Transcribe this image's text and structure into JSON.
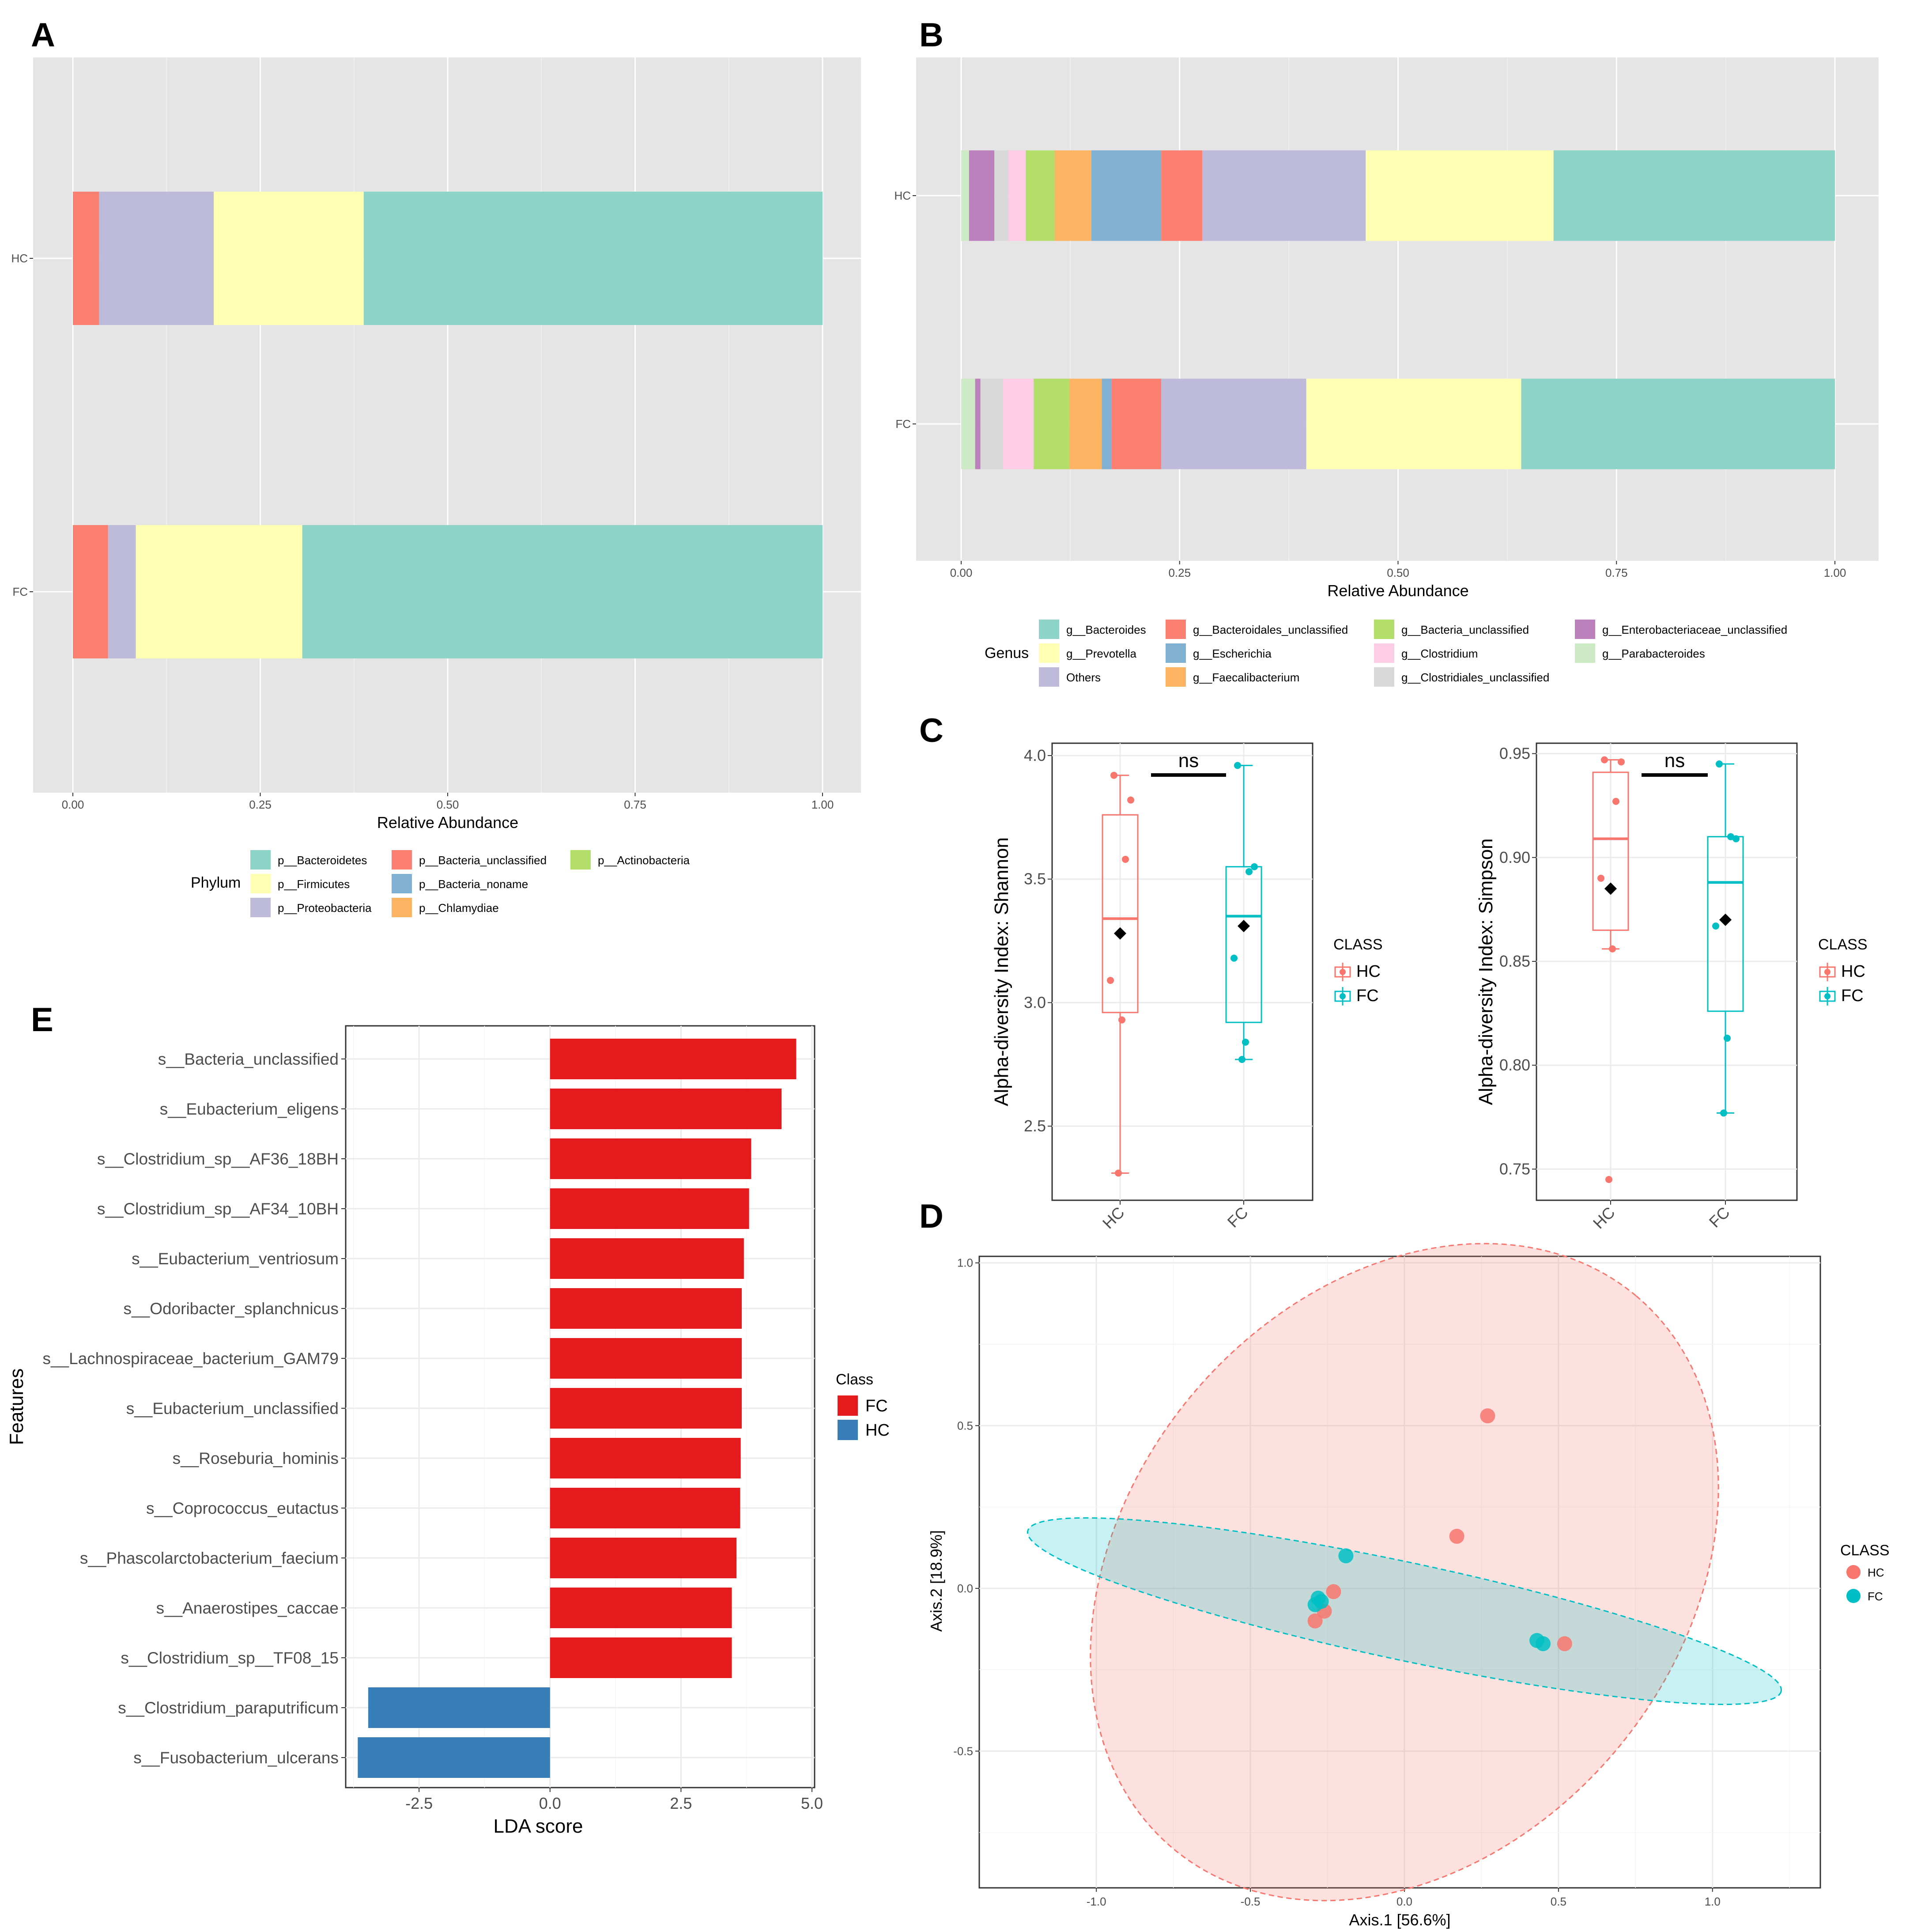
{
  "panels": {
    "A": "A",
    "B": "B",
    "C": "C",
    "D": "D",
    "E": "E"
  },
  "chart_data": [
    {
      "id": "A",
      "type": "bar",
      "orientation": "horizontal",
      "stacked": true,
      "xlabel": "Relative Abundance",
      "xlim": [
        0,
        1
      ],
      "xticks": [
        "0.00",
        "0.25",
        "0.50",
        "0.75",
        "1.00"
      ],
      "categories": [
        "HC",
        "FC"
      ],
      "legend_title": "Phylum",
      "series": [
        {
          "name": "p__Chlamydiae",
          "color": "#fdb462",
          "values": [
            0.0,
            0.0
          ]
        },
        {
          "name": "p__Bacteria_noname",
          "color": "#80b1d3",
          "values": [
            0.0,
            0.0
          ]
        },
        {
          "name": "p__Actinobacteria",
          "color": "#b3de69",
          "values": [
            0.0,
            0.0
          ]
        },
        {
          "name": "p__Bacteria_unclassified",
          "color": "#fb8072",
          "values": [
            0.035,
            0.047
          ]
        },
        {
          "name": "p__Proteobacteria",
          "color": "#bebada",
          "values": [
            0.153,
            0.037
          ]
        },
        {
          "name": "p__Firmicutes",
          "color": "#ffffb3",
          "values": [
            0.2,
            0.222
          ]
        },
        {
          "name": "p__Bacteroidetes",
          "color": "#8dd3c7",
          "values": [
            0.612,
            0.694
          ]
        }
      ],
      "legend": [
        {
          "name": "p__Bacteroidetes",
          "color": "#8dd3c7"
        },
        {
          "name": "p__Firmicutes",
          "color": "#ffffb3"
        },
        {
          "name": "p__Proteobacteria",
          "color": "#bebada"
        },
        {
          "name": "p__Bacteria_unclassified",
          "color": "#fb8072"
        },
        {
          "name": "p__Bacteria_noname",
          "color": "#80b1d3"
        },
        {
          "name": "p__Chlamydiae",
          "color": "#fdb462"
        },
        {
          "name": "p__Actinobacteria",
          "color": "#b3de69"
        }
      ]
    },
    {
      "id": "B",
      "type": "bar",
      "orientation": "horizontal",
      "stacked": true,
      "xlabel": "Relative Abundance",
      "xlim": [
        0,
        1
      ],
      "xticks": [
        "0.00",
        "0.25",
        "0.50",
        "0.75",
        "1.00"
      ],
      "categories": [
        "HC",
        "FC"
      ],
      "legend_title": "Genus",
      "series": [
        {
          "name": "g__Parabacteroides",
          "color": "#ccebc5",
          "values": [
            0.009,
            0.016
          ]
        },
        {
          "name": "g__Enterobacteriaceae_unclassified",
          "color": "#bc80bd",
          "values": [
            0.029,
            0.006
          ]
        },
        {
          "name": "g__Clostridiales_unclassified",
          "color": "#d9d9d9",
          "values": [
            0.016,
            0.026
          ]
        },
        {
          "name": "g__Clostridium",
          "color": "#fccde5",
          "values": [
            0.02,
            0.035
          ]
        },
        {
          "name": "g__Bacteria_unclassified",
          "color": "#b3de69",
          "values": [
            0.033,
            0.041
          ]
        },
        {
          "name": "g__Faecalibacterium",
          "color": "#fdb462",
          "values": [
            0.042,
            0.037
          ]
        },
        {
          "name": "g__Escherichia",
          "color": "#80b1d3",
          "values": [
            0.08,
            0.011
          ]
        },
        {
          "name": "g__Bacteroidales_unclassified",
          "color": "#fb8072",
          "values": [
            0.047,
            0.057
          ]
        },
        {
          "name": "Others",
          "color": "#bebada",
          "values": [
            0.187,
            0.166
          ]
        },
        {
          "name": "g__Prevotella",
          "color": "#ffffb3",
          "values": [
            0.215,
            0.246
          ]
        },
        {
          "name": "g__Bacteroides",
          "color": "#8dd3c7",
          "values": [
            0.322,
            0.359
          ]
        }
      ],
      "legend": [
        {
          "name": "g__Bacteroides",
          "color": "#8dd3c7"
        },
        {
          "name": "g__Prevotella",
          "color": "#ffffb3"
        },
        {
          "name": "Others",
          "color": "#bebada"
        },
        {
          "name": "g__Bacteroidales_unclassified",
          "color": "#fb8072"
        },
        {
          "name": "g__Escherichia",
          "color": "#80b1d3"
        },
        {
          "name": "g__Faecalibacterium",
          "color": "#fdb462"
        },
        {
          "name": "g__Bacteria_unclassified",
          "color": "#b3de69"
        },
        {
          "name": "g__Clostridium",
          "color": "#fccde5"
        },
        {
          "name": "g__Clostridiales_unclassified",
          "color": "#d9d9d9"
        },
        {
          "name": "g__Enterobacteriaceae_unclassified",
          "color": "#bc80bd"
        },
        {
          "name": "g__Parabacteroides",
          "color": "#ccebc5"
        }
      ]
    },
    {
      "id": "C1",
      "type": "boxplot",
      "ylabel": "Alpha-diversity Index: Shannon",
      "ylim": [
        2.2,
        4.05
      ],
      "yticks": [
        2.5,
        3.0,
        3.5,
        4.0
      ],
      "ytick_labels": [
        "2.5",
        "3.0",
        "3.5",
        "4.0"
      ],
      "categories": [
        "HC",
        "FC"
      ],
      "annotation": "ns",
      "legend_title": "CLASS",
      "groups": [
        {
          "name": "HC",
          "color": "#f8766d",
          "min": 2.31,
          "q1": 2.96,
          "median": 3.34,
          "q3": 3.76,
          "max": 3.92,
          "mean": 3.28,
          "points": [
            3.92,
            3.82,
            3.58,
            3.09,
            2.93,
            2.31
          ]
        },
        {
          "name": "FC",
          "color": "#00bfc4",
          "min": 2.77,
          "q1": 2.92,
          "median": 3.35,
          "q3": 3.55,
          "max": 3.96,
          "mean": 3.31,
          "points": [
            3.96,
            3.55,
            3.53,
            3.18,
            2.84,
            2.77
          ]
        }
      ]
    },
    {
      "id": "C2",
      "type": "boxplot",
      "ylabel": "Alpha-diversity Index: Simpson",
      "ylim": [
        0.735,
        0.955
      ],
      "yticks": [
        0.75,
        0.8,
        0.85,
        0.9,
        0.95
      ],
      "ytick_labels": [
        "0.75",
        "0.80",
        "0.85",
        "0.90",
        "0.95"
      ],
      "categories": [
        "HC",
        "FC"
      ],
      "annotation": "ns",
      "legend_title": "CLASS",
      "groups": [
        {
          "name": "HC",
          "color": "#f8766d",
          "min": 0.856,
          "q1": 0.865,
          "median": 0.909,
          "q3": 0.941,
          "max": 0.947,
          "mean": 0.885,
          "points": [
            0.947,
            0.946,
            0.927,
            0.89,
            0.856,
            0.745
          ]
        },
        {
          "name": "FC",
          "color": "#00bfc4",
          "min": 0.777,
          "q1": 0.826,
          "median": 0.888,
          "q3": 0.91,
          "max": 0.945,
          "mean": 0.87,
          "points": [
            0.945,
            0.909,
            0.91,
            0.867,
            0.813,
            0.777
          ]
        }
      ]
    },
    {
      "id": "D",
      "type": "scatter",
      "xlabel": "Axis.1   [56.6%]",
      "ylabel": "Axis.2   [18.9%]",
      "xlim": [
        -1.38,
        1.35
      ],
      "ylim": [
        -0.92,
        1.02
      ],
      "xticks": [
        -1.0,
        -0.5,
        0.0,
        0.5,
        1.0
      ],
      "xtick_labels": [
        "-1.0",
        "-0.5",
        "0.0",
        "0.5",
        "1.0"
      ],
      "yticks": [
        -0.5,
        0.0,
        0.5,
        1.0
      ],
      "ytick_labels": [
        "-0.5",
        "0.0",
        "0.5",
        "1.0"
      ],
      "legend_title": "CLASS",
      "series": [
        {
          "name": "HC",
          "color": "#f8766d",
          "points": [
            [
              0.27,
              0.53
            ],
            [
              0.17,
              0.16
            ],
            [
              -0.23,
              -0.01
            ],
            [
              -0.26,
              -0.07
            ],
            [
              -0.29,
              -0.1
            ],
            [
              0.52,
              -0.17
            ]
          ],
          "ellipse": {
            "cx": 0.0,
            "cy": 0.05,
            "rx": 1.17,
            "ry": 0.85,
            "angle_deg": 50
          }
        },
        {
          "name": "FC",
          "color": "#00bfc4",
          "points": [
            [
              -0.19,
              0.1
            ],
            [
              -0.27,
              -0.04
            ],
            [
              -0.29,
              -0.05
            ],
            [
              0.43,
              -0.16
            ],
            [
              0.45,
              -0.17
            ],
            [
              -0.28,
              -0.03
            ]
          ],
          "ellipse": {
            "cx": 0.0,
            "cy": -0.07,
            "rx": 1.25,
            "ry": 0.15,
            "angle_deg": -12
          }
        }
      ]
    },
    {
      "id": "E",
      "type": "bar",
      "orientation": "horizontal",
      "xlabel": "LDA score",
      "ylabel": "Features",
      "xlim": [
        -3.9,
        5.05
      ],
      "xticks": [
        -2.5,
        0.0,
        2.5,
        5.0
      ],
      "xtick_labels": [
        "-2.5",
        "0.0",
        "2.5",
        "5.0"
      ],
      "legend_title": "Class",
      "legend": [
        {
          "name": "FC",
          "color": "#e41a1c"
        },
        {
          "name": "HC",
          "color": "#377eb8"
        }
      ],
      "features": [
        "s__Bacteria_unclassified",
        "s__Eubacterium_eligens",
        "s__Clostridium_sp__AF36_18BH",
        "s__Clostridium_sp__AF34_10BH",
        "s__Eubacterium_ventriosum",
        "s__Odoribacter_splanchnicus",
        "s__Lachnospiraceae_bacterium_GAM79",
        "s__Eubacterium_unclassified",
        "s__Roseburia_hominis",
        "s__Coprococcus_eutactus",
        "s__Phascolarctobacterium_faecium",
        "s__Anaerostipes_caccae",
        "s__Clostridium_sp__TF08_15",
        "s__Clostridium_paraputrificum",
        "s__Fusobacterium_ulcerans"
      ],
      "values": [
        4.7,
        4.42,
        3.84,
        3.8,
        3.7,
        3.66,
        3.66,
        3.66,
        3.64,
        3.63,
        3.56,
        3.47,
        3.47,
        -3.47,
        -3.67
      ],
      "classes": [
        "FC",
        "FC",
        "FC",
        "FC",
        "FC",
        "FC",
        "FC",
        "FC",
        "FC",
        "FC",
        "FC",
        "FC",
        "FC",
        "HC",
        "HC"
      ]
    }
  ]
}
